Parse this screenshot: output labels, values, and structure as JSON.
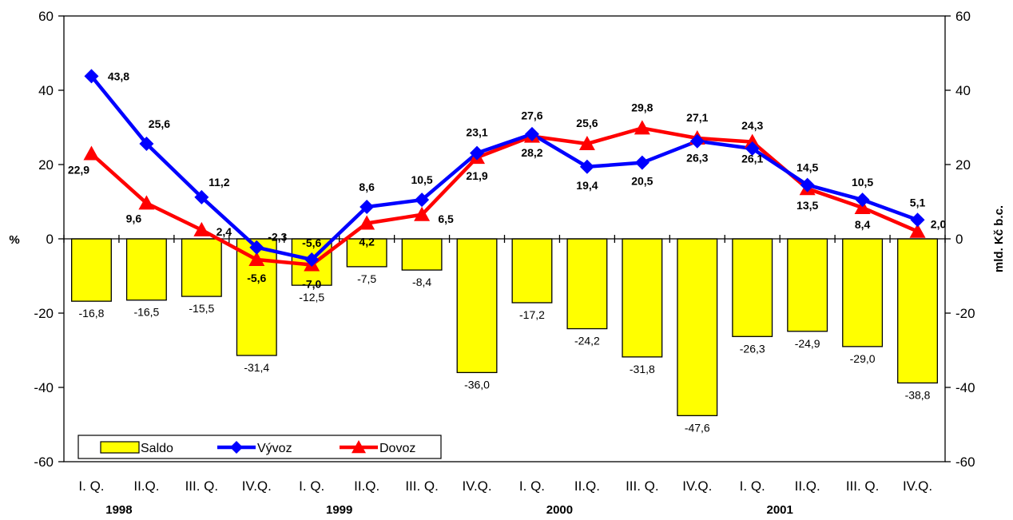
{
  "chart_data": {
    "type": "bar",
    "categories": [
      "I. Q.",
      "II.Q.",
      "III. Q.",
      "IV.Q.",
      "I. Q.",
      "II.Q.",
      "III. Q.",
      "IV.Q.",
      "I. Q.",
      "II.Q.",
      "III. Q.",
      "IV.Q.",
      "I. Q.",
      "II.Q.",
      "III. Q.",
      "IV.Q."
    ],
    "years": [
      "1998",
      "1999",
      "2000",
      "2001"
    ],
    "y_left_label": "%",
    "y_right_label": "mld. Kč b.c.",
    "ylim": [
      -60,
      60
    ],
    "yticks": [
      -60,
      -40,
      -20,
      0,
      20,
      40,
      60
    ],
    "grid": false,
    "legend_position": "bottom-left",
    "series": [
      {
        "name": "Saldo",
        "type": "bar",
        "axis": "right",
        "color": "#FFFF00",
        "values": [
          -16.8,
          -16.5,
          -15.5,
          -31.4,
          -12.5,
          -7.5,
          -8.4,
          -36.0,
          -17.2,
          -24.2,
          -31.8,
          -47.6,
          -26.3,
          -24.9,
          -29.0,
          -38.8
        ],
        "labels": [
          "-16,8",
          "-16,5",
          "-15,5",
          "-31,4",
          "-12,5",
          "-7,5",
          "-8,4",
          "-36,0",
          "-17,2",
          "-24,2",
          "-31,8",
          "-47,6",
          "-26,3",
          "-24,9",
          "-29,0",
          "-38,8"
        ]
      },
      {
        "name": "Vývoz",
        "type": "line",
        "marker": "diamond",
        "axis": "left",
        "color": "#0000FF",
        "values": [
          43.8,
          25.6,
          11.2,
          -2.3,
          -5.6,
          8.6,
          10.5,
          23.1,
          28.2,
          19.4,
          20.5,
          26.3,
          24.3,
          14.5,
          10.5,
          5.1
        ],
        "labels": [
          "43,8",
          "25,6",
          "11,2",
          "-2,3",
          "-5,6",
          "8,6",
          "10,5",
          "23,1",
          "28,2",
          "19,4",
          "20,5",
          "26,3",
          "24,3",
          "14,5",
          "10,5",
          "5,1"
        ]
      },
      {
        "name": "Dovoz",
        "type": "line",
        "marker": "triangle",
        "axis": "left",
        "color": "#FF0000",
        "values": [
          22.9,
          9.6,
          2.4,
          -5.6,
          -7.0,
          4.2,
          6.5,
          21.9,
          27.6,
          25.6,
          29.8,
          27.1,
          26.1,
          13.5,
          8.4,
          2.0
        ],
        "labels": [
          "22,9",
          "9,6",
          "2,4",
          "-5,6",
          "-7,0",
          "4,2",
          "6,5",
          "21,9",
          "27,6",
          "25,6",
          "29,8",
          "27,1",
          "26,1",
          "13,5",
          "8,4",
          "2,0"
        ]
      }
    ]
  }
}
